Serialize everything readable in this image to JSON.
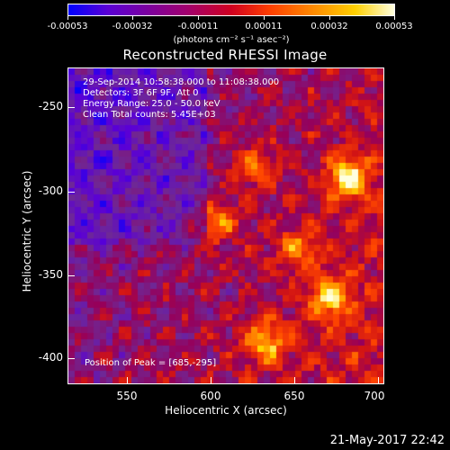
{
  "colorbar": {
    "tick_labels": [
      "-0.00053",
      "-0.00032",
      "-0.00011",
      "0.00011",
      "0.00032",
      "0.00053"
    ],
    "units": "(photons cm⁻² s⁻¹ asec⁻²)"
  },
  "title": "Reconstructed RHESSI Image",
  "info": {
    "line1": "29-Sep-2014 10:58:38.000 to 11:08:38.000",
    "line2": "Detectors: 3F 6F 9F, Att 0",
    "line3": "Energy Range: 25.0 - 50.0 keV",
    "line4": "Clean     Total counts: 5.45E+03"
  },
  "peak": "Position of Peak = [685,-295]",
  "axes": {
    "xlabel": "Heliocentric X (arcsec)",
    "ylabel": "Heliocentric Y (arcsec)",
    "xticks": [
      "550",
      "600",
      "650",
      "700"
    ],
    "yticks": [
      "-250",
      "-300",
      "-350",
      "-400"
    ]
  },
  "timestamp": "21-May-2017 22:42",
  "colors": {
    "low": "#0000ff",
    "mid": "#d00020",
    "high": "#ffffe0"
  }
}
